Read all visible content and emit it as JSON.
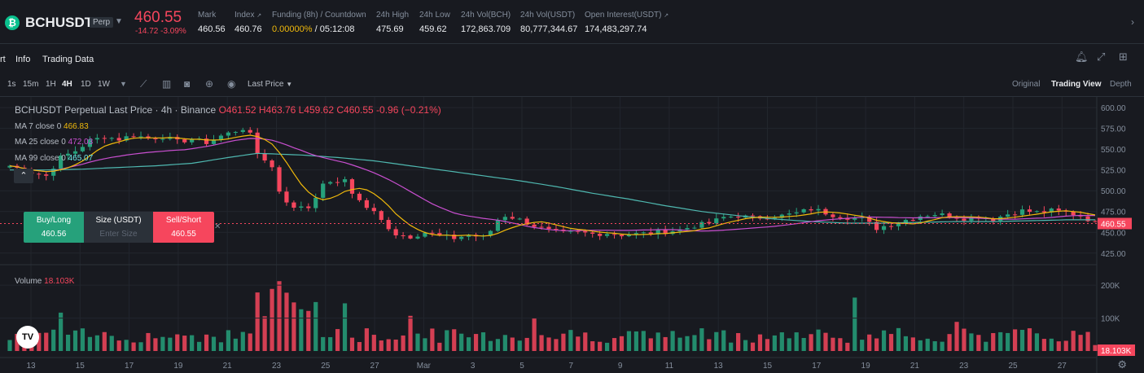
{
  "header": {
    "symbol": "BCHUSDT",
    "badge": "Perp",
    "last_price": "460.55",
    "change": "-14.72 -3.09%",
    "stats": [
      {
        "label": "Mark",
        "value": "460.56"
      },
      {
        "label": "Index",
        "value": "460.76"
      },
      {
        "label": "Funding (8h) / Countdown",
        "value_a": "0.00000%",
        "value_b": " / 05:12:08"
      },
      {
        "label": "24h High",
        "value": "475.69"
      },
      {
        "label": "24h Low",
        "value": "459.62"
      },
      {
        "label": "24h Vol(BCH)",
        "value": "172,863.709"
      },
      {
        "label": "24h Vol(USDT)",
        "value": "80,777,344.67"
      },
      {
        "label": "Open Interest(USDT)",
        "value": "174,483,297.74"
      }
    ]
  },
  "tabs": [
    "rt",
    "Info",
    "Trading Data"
  ],
  "toolbar": {
    "intervals": [
      "1s",
      "15m",
      "1H",
      "4H",
      "1D",
      "1W"
    ],
    "active_interval": "4H",
    "price_type": "Last Price",
    "views": [
      "Original",
      "Trading View",
      "Depth"
    ],
    "active_view": "Trading View"
  },
  "chart": {
    "legend_title": "BCHUSDT Perpetual Last Price · 4h · Binance",
    "ohlc": "O461.52 H463.76 L459.62 C460.55 -0.96 (−0.21%)",
    "ma7": {
      "label": "MA 7 close 0",
      "value": "466.83"
    },
    "ma25": {
      "label": "MA 25 close 0",
      "value": "472.03"
    },
    "ma99": {
      "label": "MA 99 close 0",
      "value": "465.07"
    },
    "volume_label": "Volume",
    "volume_value": "18.103K",
    "current_price_tag": "460.55",
    "current_volume_tag": "18.103K"
  },
  "order_widget": {
    "buy_label": "Buy/Long",
    "buy_price": "460.56",
    "size_label": "Size (USDT)",
    "size_placeholder": "Enter Size",
    "sell_label": "Sell/Short",
    "sell_price": "460.55"
  },
  "colors": {
    "up": "#26a17b",
    "down": "#f6465d",
    "ma7": "#f0b90b",
    "ma25": "#c94fd0",
    "ma99": "#4fb8b0"
  },
  "chart_data": {
    "type": "candlestick",
    "title": "BCHUSDT Perpetual Last Price · 4h · Binance",
    "y_ticks": [
      "600.00",
      "575.00",
      "550.00",
      "525.00",
      "500.00",
      "475.00",
      "450.00",
      "425.00"
    ],
    "ylim": [
      415,
      605
    ],
    "x_ticks": [
      "13",
      "15",
      "17",
      "19",
      "21",
      "23",
      "25",
      "27",
      "Mar",
      "3",
      "5",
      "7",
      "9",
      "11",
      "13",
      "15",
      "17",
      "19",
      "21",
      "23",
      "25",
      "27"
    ],
    "volume_ticks": [
      "200K",
      "100K"
    ],
    "volume_ylim": [
      0,
      240000
    ],
    "close_path": [
      [
        0,
        530
      ],
      [
        3,
        522
      ],
      [
        5,
        518
      ],
      [
        7,
        540
      ],
      [
        9,
        548
      ],
      [
        11,
        560
      ],
      [
        13,
        565
      ],
      [
        15,
        562
      ],
      [
        17,
        567
      ],
      [
        19,
        563
      ],
      [
        21,
        565
      ],
      [
        23,
        559
      ],
      [
        25,
        562
      ],
      [
        27,
        558
      ],
      [
        29,
        566
      ],
      [
        31,
        572
      ],
      [
        32,
        575
      ],
      [
        33,
        567
      ],
      [
        34,
        545
      ],
      [
        35,
        538
      ],
      [
        36,
        528
      ],
      [
        37,
        500
      ],
      [
        38,
        488
      ],
      [
        39,
        478
      ],
      [
        40,
        482
      ],
      [
        41,
        480
      ],
      [
        42,
        494
      ],
      [
        43,
        506
      ],
      [
        44,
        512
      ],
      [
        45,
        508
      ],
      [
        46,
        514
      ],
      [
        47,
        498
      ],
      [
        48,
        488
      ],
      [
        49,
        480
      ],
      [
        50,
        474
      ],
      [
        51,
        464
      ],
      [
        52,
        456
      ],
      [
        53,
        448
      ],
      [
        55,
        445
      ],
      [
        57,
        450
      ],
      [
        59,
        446
      ],
      [
        61,
        443
      ],
      [
        63,
        447
      ],
      [
        65,
        444
      ],
      [
        66,
        452
      ],
      [
        67,
        465
      ],
      [
        68,
        470
      ],
      [
        69,
        468
      ],
      [
        70,
        465
      ],
      [
        72,
        458
      ],
      [
        74,
        452
      ],
      [
        76,
        449
      ],
      [
        78,
        450
      ],
      [
        80,
        448
      ],
      [
        82,
        449
      ],
      [
        84,
        447
      ],
      [
        86,
        448
      ],
      [
        88,
        449
      ],
      [
        90,
        451
      ],
      [
        92,
        453
      ],
      [
        94,
        458
      ],
      [
        96,
        461
      ],
      [
        98,
        468
      ],
      [
        100,
        470
      ],
      [
        102,
        467
      ],
      [
        104,
        469
      ],
      [
        106,
        470
      ],
      [
        108,
        473
      ],
      [
        110,
        478
      ],
      [
        111,
        476
      ],
      [
        113,
        471
      ],
      [
        115,
        468
      ],
      [
        117,
        466
      ],
      [
        119,
        455
      ],
      [
        121,
        460
      ],
      [
        123,
        465
      ],
      [
        125,
        470
      ],
      [
        127,
        472
      ],
      [
        129,
        470
      ],
      [
        131,
        467
      ],
      [
        133,
        469
      ],
      [
        135,
        466
      ],
      [
        137,
        472
      ],
      [
        139,
        476
      ],
      [
        141,
        474
      ],
      [
        143,
        476
      ],
      [
        145,
        474
      ],
      [
        147,
        470
      ],
      [
        148,
        466
      ],
      [
        149,
        461
      ]
    ],
    "ma99_path": [
      [
        0,
        525
      ],
      [
        5,
        525
      ],
      [
        10,
        526
      ],
      [
        15,
        528
      ],
      [
        20,
        530
      ],
      [
        25,
        533
      ],
      [
        30,
        540
      ],
      [
        34,
        545
      ],
      [
        40,
        543
      ],
      [
        45,
        540
      ],
      [
        50,
        536
      ],
      [
        55,
        530
      ],
      [
        60,
        524
      ],
      [
        65,
        518
      ],
      [
        70,
        512
      ],
      [
        75,
        505
      ],
      [
        80,
        497
      ],
      [
        85,
        490
      ],
      [
        90,
        482
      ],
      [
        95,
        475
      ],
      [
        100,
        470
      ],
      [
        105,
        466
      ],
      [
        110,
        463
      ],
      [
        115,
        461
      ],
      [
        120,
        461
      ],
      [
        125,
        462
      ],
      [
        130,
        463
      ],
      [
        135,
        463
      ],
      [
        140,
        464
      ],
      [
        145,
        465
      ],
      [
        149,
        465
      ]
    ]
  }
}
